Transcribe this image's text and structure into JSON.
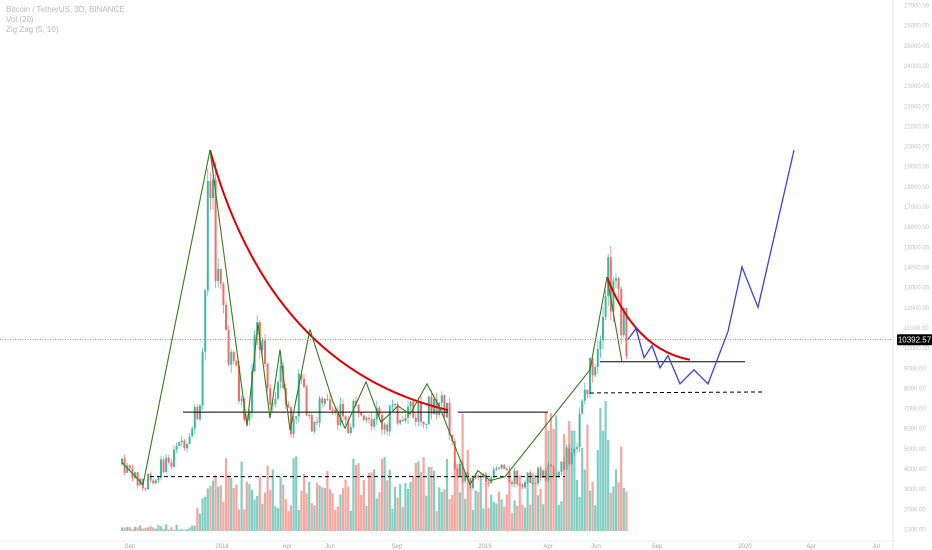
{
  "legend": {
    "symbol_line": "Bitcoin / TetherUS, 3D, BINANCE",
    "volume_line": "Vol (20)",
    "zigzag_line": "Zig Zag (5, 10)"
  },
  "price_label": "10392.57",
  "chart_data": {
    "type": "candlestick",
    "title": "Bitcoin / TetherUS, 3D, BINANCE",
    "indicators": [
      "Vol (20)",
      "Zig Zag (5, 10)"
    ],
    "x_ticks": [
      "Sep",
      "2018",
      "Apr",
      "Jun",
      "Sep",
      "2019",
      "Apr",
      "Jun",
      "Sep",
      "2020",
      "Apr",
      "Jul"
    ],
    "y_range": [
      0,
      27000
    ],
    "y_ticks": [
      "27000.00",
      "26000.00",
      "25000.00",
      "24000.00",
      "23000.00",
      "22000.00",
      "21000.00",
      "20000.00",
      "19000.00",
      "18000.00",
      "17000.00",
      "16000.00",
      "15000.00",
      "14000.00",
      "13000.00",
      "12000.00",
      "11000.00",
      "10000.00",
      "9000.00",
      "8000.00",
      "7000.00",
      "6000.00",
      "5000.00",
      "4000.00",
      "3000.00",
      "2000.00",
      "1000.00"
    ],
    "current_price": 10392.57,
    "price_series": [
      [
        "Sep",
        4200
      ],
      [
        "Sep",
        3200
      ],
      [
        "Oct",
        4800
      ],
      [
        "Nov",
        7300
      ],
      [
        "Dec",
        11000
      ],
      [
        "Dec",
        19800
      ],
      [
        "2018",
        14500
      ],
      [
        "2018",
        11000
      ],
      [
        "Feb",
        6100
      ],
      [
        "Mar",
        11200
      ],
      [
        "Apr",
        6500
      ],
      [
        "May",
        9900
      ],
      [
        "Jun",
        5900
      ],
      [
        "Jul",
        8200
      ],
      [
        "Aug",
        6000
      ],
      [
        "Sep",
        7300
      ],
      [
        "Oct",
        6300
      ],
      [
        "Nov",
        6800
      ],
      [
        "Nov",
        4000
      ],
      [
        "Dec",
        3200
      ],
      [
        "2019",
        3900
      ],
      [
        "Feb",
        3400
      ],
      [
        "Mar",
        4000
      ],
      [
        "Apr",
        5300
      ],
      [
        "May",
        8100
      ],
      [
        "Jun",
        10800
      ],
      [
        "Jun",
        13500
      ],
      [
        "Jul",
        9800
      ],
      [
        "Aug",
        11500
      ],
      [
        "Aug",
        10392.57
      ]
    ],
    "zigzag_points": [
      [
        "Sep",
        3200
      ],
      [
        "Dec",
        19800
      ],
      [
        "Feb",
        6100
      ],
      [
        "Mar",
        11200
      ],
      [
        "Apr",
        6500
      ],
      [
        "May",
        9900
      ],
      [
        "Jun",
        5900
      ],
      [
        "Jul",
        8200
      ],
      [
        "Aug",
        6000
      ],
      [
        "Sep",
        7300
      ],
      [
        "Oct",
        6300
      ],
      [
        "Nov",
        7000
      ],
      [
        "Dec",
        3200
      ],
      [
        "Jan",
        3900
      ],
      [
        "Feb",
        3400
      ],
      [
        "Jun",
        8900
      ],
      [
        "Jun",
        13500
      ],
      [
        "Jul",
        9300
      ]
    ],
    "projection_points": [
      [
        "Aug",
        10400
      ],
      [
        "Aug",
        10950
      ],
      [
        "Sep",
        9500
      ],
      [
        "Sep",
        10100
      ],
      [
        "Sep",
        9000
      ],
      [
        "Oct",
        9600
      ],
      [
        "Oct",
        8200
      ],
      [
        "Nov",
        8900
      ],
      [
        "Nov",
        8200
      ],
      [
        "Dec",
        10800
      ],
      [
        "2020",
        14000
      ],
      [
        "Feb",
        12000
      ],
      [
        "Apr",
        19800
      ]
    ],
    "resistance_curves": [
      {
        "from": [
          "Dec",
          19800
        ],
        "to": [
          "Nov",
          6900
        ]
      },
      {
        "from": [
          "Jun",
          13500
        ],
        "to": [
          "Oct",
          9400
        ]
      }
    ],
    "support_levels": [
      6800,
      3600,
      9300,
      6200
    ],
    "volume": "bars shown beneath price, teal for up periods and salmon for down periods",
    "colors": {
      "candle_up": "#3fb7a4",
      "candle_down": "#ef6f6a",
      "zigzag": "#3a7a1c",
      "resistance_curve": "#e00000",
      "projection": "#4040d8",
      "support_line": "#000000",
      "price_label_bg": "#000000"
    }
  }
}
